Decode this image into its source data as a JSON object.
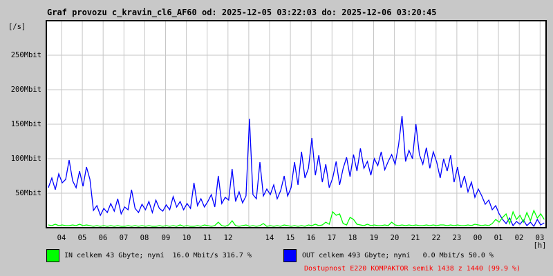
{
  "title": "Graf provozu c_kravin_cl6_AF60 od: 2025-12-05 03:22:03 do: 2025-12-06 03:20:45",
  "colors": {
    "background": "#c8c8c8",
    "plot_background": "#ffffff",
    "grid": "#c6c6c6",
    "border": "#000000",
    "in_series": "#00ff00",
    "out_series": "#0000ff",
    "availability_text": "#ff0000",
    "text": "#000000"
  },
  "y_axis": {
    "unit_label": "[/s]",
    "ticks": [
      "50Mbit",
      "100Mbit",
      "150Mbit",
      "200Mbit",
      "250Mbit"
    ]
  },
  "x_axis": {
    "unit_label": "[h]"
  },
  "legend": {
    "in_label": "IN celkem 43 Gbyte; nyní  16.0 Mbit/s 316.7 %",
    "out_label": "OUT celkem 493 Gbyte; nyní   0.0 Mbit/s 50.0 %"
  },
  "availability_note": "Dostupnost E220 KOMPAKTOR semik 1438 z 1440 (99.9 %)",
  "chart_data": {
    "type": "line",
    "title": "Graf provozu c_kravin_cl6_AF60 od: 2025-12-05 03:22:03 do: 2025-12-06 03:20:45",
    "xlabel": "[h]",
    "ylabel": "[/s] (Mbit/s)",
    "grid": true,
    "ylim": [
      0,
      300
    ],
    "y_tick_values": [
      50,
      100,
      150,
      200,
      250
    ],
    "x_range_hours": [
      3.37,
      27.33
    ],
    "x_start_hour": 3.367,
    "x_step_hours": 0.166667,
    "x_tick_hours": [
      4,
      5,
      6,
      7,
      8,
      9,
      10,
      11,
      12,
      13,
      14,
      15,
      16,
      17,
      18,
      19,
      20,
      21,
      22,
      23,
      24,
      25,
      26,
      27
    ],
    "x_tick_labels": [
      "04",
      "05",
      "06",
      "07",
      "08",
      "09",
      "10",
      "11",
      "12",
      "",
      "14",
      "15",
      "16",
      "17",
      "18",
      "19",
      "20",
      "21",
      "22",
      "23",
      "00",
      "01",
      "02",
      "03"
    ],
    "series": [
      {
        "name": "OUT",
        "color": "#0000ff",
        "values": [
          58,
          72,
          55,
          78,
          65,
          70,
          98,
          68,
          58,
          82,
          60,
          88,
          70,
          25,
          32,
          18,
          28,
          22,
          35,
          24,
          42,
          20,
          30,
          26,
          55,
          28,
          22,
          34,
          26,
          38,
          22,
          40,
          28,
          24,
          33,
          26,
          45,
          30,
          38,
          26,
          35,
          28,
          65,
          32,
          42,
          30,
          38,
          48,
          30,
          75,
          35,
          44,
          40,
          85,
          38,
          52,
          36,
          46,
          158,
          48,
          42,
          95,
          46,
          56,
          48,
          62,
          42,
          54,
          75,
          46,
          58,
          95,
          62,
          110,
          72,
          86,
          130,
          76,
          105,
          66,
          92,
          58,
          72,
          96,
          62,
          86,
          102,
          74,
          106,
          82,
          115,
          86,
          96,
          76,
          100,
          90,
          110,
          84,
          96,
          106,
          92,
          120,
          162,
          96,
          112,
          100,
          150,
          106,
          92,
          116,
          86,
          110,
          95,
          72,
          100,
          82,
          105,
          66,
          88,
          58,
          75,
          52,
          66,
          44,
          56,
          46,
          34,
          40,
          26,
          32,
          20,
          12,
          6,
          14,
          3,
          9,
          5,
          11,
          3,
          8,
          2,
          12,
          4,
          7
        ]
      },
      {
        "name": "IN",
        "color": "#00ff00",
        "values": [
          4,
          3,
          5,
          3,
          4,
          3,
          3,
          4,
          3,
          5,
          3,
          4,
          3,
          2,
          3,
          2,
          3,
          2,
          3,
          2,
          3,
          2,
          2,
          3,
          2,
          3,
          2,
          3,
          2,
          3,
          2,
          2,
          3,
          2,
          3,
          2,
          3,
          2,
          4,
          2,
          3,
          2,
          2,
          3,
          2,
          4,
          3,
          2,
          3,
          8,
          3,
          2,
          4,
          10,
          3,
          2,
          3,
          4,
          2,
          3,
          2,
          3,
          6,
          2,
          3,
          2,
          3,
          2,
          4,
          3,
          2,
          3,
          2,
          3,
          2,
          4,
          3,
          5,
          3,
          4,
          8,
          5,
          23,
          18,
          20,
          6,
          4,
          15,
          12,
          5,
          4,
          3,
          5,
          3,
          4,
          3,
          3,
          4,
          3,
          8,
          4,
          3,
          4,
          3,
          4,
          3,
          4,
          3,
          3,
          4,
          3,
          4,
          3,
          4,
          4,
          3,
          4,
          3,
          4,
          3,
          3,
          4,
          3,
          5,
          4,
          3,
          4,
          3,
          6,
          12,
          8,
          15,
          20,
          6,
          23,
          12,
          18,
          8,
          22,
          10,
          25,
          14,
          20,
          12
        ]
      }
    ]
  }
}
